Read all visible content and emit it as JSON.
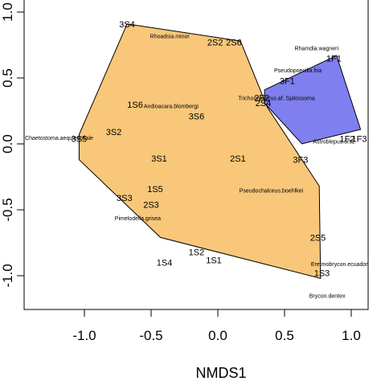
{
  "chart_data": {
    "type": "scatter",
    "xlabel": "NMDS1",
    "ylabel": "",
    "xlim": [
      -1.3,
      1.1
    ],
    "ylim": [
      -1.25,
      1.02
    ],
    "xticks": [
      -1.0,
      -0.5,
      0.0,
      0.5,
      1.0
    ],
    "xtick_labels": [
      "-1.0",
      "-0.5",
      "0.0",
      "0.5",
      "1.0"
    ],
    "yticks": [
      -1.0,
      -0.5,
      0.0,
      0.5,
      1.0
    ],
    "ytick_labels": [
      "-1.0",
      "-0.5",
      "0.0",
      "0.5",
      "1.0"
    ],
    "hulls": [
      {
        "color": "#f9c779",
        "points": [
          [
            -0.68,
            0.91
          ],
          [
            0.17,
            0.78
          ],
          [
            0.37,
            0.28
          ],
          [
            0.76,
            -0.32
          ],
          [
            0.77,
            -1.02
          ],
          [
            -0.43,
            -0.71
          ],
          [
            -1.04,
            -0.12
          ],
          [
            -1.04,
            0.07
          ]
        ]
      },
      {
        "color": "#7f7ff0",
        "points": [
          [
            0.35,
            0.41
          ],
          [
            0.89,
            0.67
          ],
          [
            1.07,
            0.11
          ],
          [
            0.63,
            0.0
          ],
          [
            0.35,
            0.31
          ]
        ]
      }
    ],
    "site_labels": [
      {
        "text": "3S4",
        "x": -0.68,
        "y": 0.91
      },
      {
        "text": "2S2",
        "x": -0.02,
        "y": 0.77
      },
      {
        "text": "2S6",
        "x": 0.12,
        "y": 0.77
      },
      {
        "text": "1F1",
        "x": 0.87,
        "y": 0.65
      },
      {
        "text": "3F1",
        "x": 0.52,
        "y": 0.48
      },
      {
        "text": "2F2",
        "x": 0.33,
        "y": 0.35
      },
      {
        "text": "2S4",
        "x": 0.34,
        "y": 0.31
      },
      {
        "text": "1S6",
        "x": -0.62,
        "y": 0.3
      },
      {
        "text": "3S6",
        "x": -0.16,
        "y": 0.21
      },
      {
        "text": "3S2",
        "x": -0.78,
        "y": 0.09
      },
      {
        "text": "3S5",
        "x": -1.04,
        "y": 0.04
      },
      {
        "text": "1F2",
        "x": 0.97,
        "y": 0.04
      },
      {
        "text": "1F3",
        "x": 1.06,
        "y": 0.04
      },
      {
        "text": "3S1",
        "x": -0.44,
        "y": -0.11
      },
      {
        "text": "2S1",
        "x": 0.15,
        "y": -0.11
      },
      {
        "text": "3F3",
        "x": 0.62,
        "y": -0.12
      },
      {
        "text": "1S5",
        "x": -0.47,
        "y": -0.34
      },
      {
        "text": "3S3",
        "x": -0.7,
        "y": -0.41
      },
      {
        "text": "2S3",
        "x": -0.5,
        "y": -0.46
      },
      {
        "text": "2S5",
        "x": 0.75,
        "y": -0.71
      },
      {
        "text": "1S2",
        "x": -0.16,
        "y": -0.82
      },
      {
        "text": "1S1",
        "x": -0.03,
        "y": -0.88
      },
      {
        "text": "1S4",
        "x": -0.4,
        "y": -0.9
      },
      {
        "text": "1S3",
        "x": 0.78,
        "y": -0.98
      }
    ],
    "species_labels": [
      {
        "text": "Rhoadsia.minor",
        "x": -0.36,
        "y": 0.82
      },
      {
        "text": "Rhamdia.wagneri",
        "x": 0.74,
        "y": 0.73
      },
      {
        "text": "Pseudopoecilia.fria",
        "x": 0.6,
        "y": 0.56
      },
      {
        "text": "Trichomycterus.af..Spilossoma",
        "x": 0.44,
        "y": 0.35
      },
      {
        "text": "Andioacara.blombergi",
        "x": -0.35,
        "y": 0.29
      },
      {
        "text": "Chaetostoma.aequinoctiale",
        "x": -1.19,
        "y": 0.05
      },
      {
        "text": "Astroblepus.ortiz",
        "x": 0.87,
        "y": 0.02
      },
      {
        "text": "Pseudochalceus.boehlkei",
        "x": 0.4,
        "y": -0.35
      },
      {
        "text": "Pimelodella.grisea",
        "x": -0.6,
        "y": -0.56
      },
      {
        "text": "Eretmobrycon.ecuadorensis",
        "x": 0.96,
        "y": -0.91
      },
      {
        "text": "Brycon.dentex",
        "x": 0.82,
        "y": -1.15
      }
    ]
  }
}
